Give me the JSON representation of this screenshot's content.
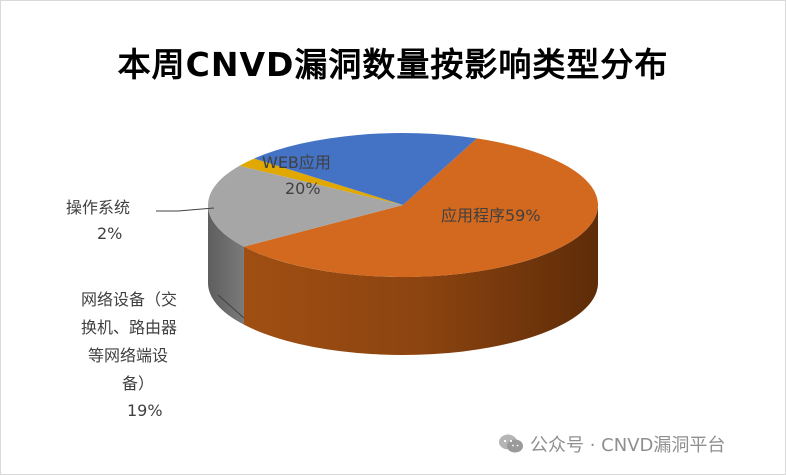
{
  "chart_data": {
    "type": "pie",
    "title": "本周CNVD漏洞数量按影响类型分布",
    "slices": [
      {
        "name": "应用程序",
        "value": 59,
        "pct_label": "59%",
        "color": "#d2691e"
      },
      {
        "name": "网络设备（交换机、路由器等网络端设备）",
        "value": 19,
        "pct_label": "19%",
        "color": "#a6a6a6"
      },
      {
        "name": "操作系统",
        "value": 2,
        "pct_label": "2%",
        "color": "#e0a800"
      },
      {
        "name": "WEB应用",
        "value": 20,
        "pct_label": "20%",
        "color": "#4472c4"
      }
    ],
    "labels": {
      "app": "应用程序59%",
      "web_name": "WEB应用",
      "web_pct": "20%",
      "os_name": "操作系统",
      "os_pct": "2%",
      "net_line1": "网络设备（交",
      "net_line2": "换机、路由器",
      "net_line3": "等网络端设",
      "net_line4": "备）",
      "net_pct": "19%"
    }
  },
  "watermark": {
    "text": "公众号 · CNVD漏洞平台",
    "icon": "wechat-icon"
  }
}
